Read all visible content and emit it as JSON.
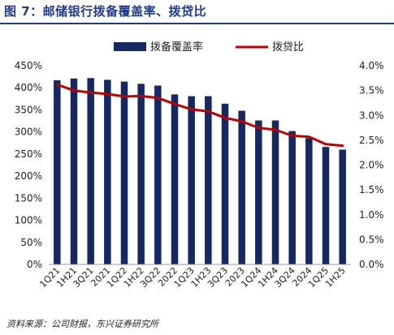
{
  "header": {
    "title": "图 7：邮储银行拨备覆盖率、拨贷比"
  },
  "footer": {
    "source": "资料来源：公司财报，东兴证券研究所"
  },
  "colors": {
    "bar": "#142864",
    "line": "#c00000",
    "title": "#1f3a93"
  },
  "chart_data": {
    "type": "bar",
    "categories": [
      "1Q21",
      "1H21",
      "3Q21",
      "2021",
      "1Q22",
      "1H22",
      "3Q22",
      "2022",
      "1Q23",
      "1H23",
      "3Q23",
      "2023",
      "1Q24",
      "1H24",
      "3Q24",
      "2024",
      "1Q25",
      "1H25"
    ],
    "series": [
      {
        "name": "拨备覆盖率",
        "type": "bar",
        "axis": "left",
        "values": [
          417,
          421,
          422,
          418,
          414,
          409,
          405,
          385,
          381,
          381,
          364,
          348,
          326,
          326,
          302,
          286,
          266,
          260
        ]
      },
      {
        "name": "拨贷比",
        "type": "line",
        "axis": "right",
        "values": [
          3.62,
          3.5,
          3.46,
          3.43,
          3.38,
          3.39,
          3.35,
          3.23,
          3.12,
          3.08,
          2.95,
          2.88,
          2.75,
          2.71,
          2.59,
          2.57,
          2.42,
          2.39
        ]
      }
    ],
    "y_left": {
      "min": 0,
      "max": 450,
      "step": 50,
      "ticks": [
        "0%",
        "50%",
        "100%",
        "150%",
        "200%",
        "250%",
        "300%",
        "350%",
        "400%",
        "450%"
      ]
    },
    "y_right": {
      "min": 0,
      "max": 4.0,
      "step": 0.5,
      "ticks": [
        "0.0%",
        "0.5%",
        "1.0%",
        "1.5%",
        "2.0%",
        "2.5%",
        "3.0%",
        "3.5%",
        "4.0%"
      ]
    },
    "legend": {
      "placement": "top",
      "items": [
        "拨备覆盖率",
        "拨贷比"
      ]
    },
    "grid": false
  }
}
